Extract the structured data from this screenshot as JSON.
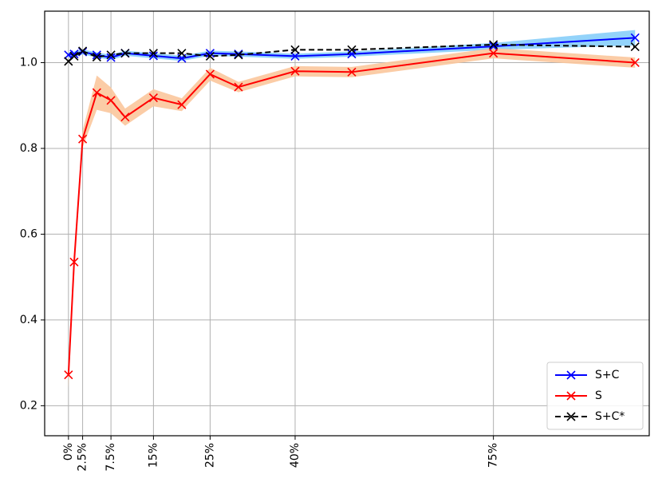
{
  "chart_data": {
    "type": "line",
    "title": "",
    "xlabel": "",
    "ylabel": "",
    "xlim": [
      -4.2,
      102.5
    ],
    "ylim": [
      0.13,
      1.12
    ],
    "grid": true,
    "legend_position": "lower-right",
    "x_ticks": [
      {
        "value": 0,
        "label": "0%"
      },
      {
        "value": 2.5,
        "label": "2.5%"
      },
      {
        "value": 7.5,
        "label": "7.5%"
      },
      {
        "value": 15,
        "label": "15%"
      },
      {
        "value": 25,
        "label": "25%"
      },
      {
        "value": 40,
        "label": "40%"
      },
      {
        "value": 75,
        "label": "75%"
      }
    ],
    "y_ticks": [
      {
        "value": 0.2,
        "label": "0.2"
      },
      {
        "value": 0.4,
        "label": "0.4"
      },
      {
        "value": 0.6,
        "label": "0.6"
      },
      {
        "value": 0.8,
        "label": "0.8"
      },
      {
        "value": 1.0,
        "label": "1.0"
      }
    ],
    "series": [
      {
        "name": "S+C",
        "color": "#0000ff",
        "band_color": "#87cefa",
        "dash": "solid",
        "x": [
          0,
          1,
          2.5,
          5,
          7.5,
          10,
          15,
          20,
          25,
          30,
          40,
          50,
          75,
          100
        ],
        "y": [
          1.018,
          1.02,
          1.025,
          1.018,
          1.012,
          1.022,
          1.016,
          1.01,
          1.022,
          1.02,
          1.015,
          1.02,
          1.038,
          1.058
        ],
        "band": [
          0.006,
          0.006,
          0.006,
          0.006,
          0.006,
          0.006,
          0.006,
          0.006,
          0.006,
          0.006,
          0.006,
          0.006,
          0.008,
          0.018
        ]
      },
      {
        "name": "S",
        "color": "#ff0000",
        "band_color": "#fbc79c",
        "dash": "solid",
        "x": [
          0,
          1,
          2.5,
          5,
          7.5,
          10,
          15,
          20,
          25,
          30,
          40,
          50,
          75,
          100
        ],
        "y": [
          0.272,
          0.535,
          0.822,
          0.93,
          0.912,
          0.873,
          0.918,
          0.902,
          0.973,
          0.943,
          0.98,
          0.978,
          1.022,
          1.0
        ],
        "band": [
          0.03,
          0.02,
          0.02,
          0.04,
          0.03,
          0.02,
          0.02,
          0.015,
          0.015,
          0.012,
          0.012,
          0.012,
          0.012,
          0.012
        ]
      },
      {
        "name": "S+C*",
        "color": "#000000",
        "dash": "dashed",
        "x": [
          0,
          1,
          2.5,
          5,
          7.5,
          10,
          15,
          20,
          25,
          30,
          40,
          50,
          75,
          100
        ],
        "y": [
          1.003,
          1.015,
          1.027,
          1.013,
          1.018,
          1.022,
          1.022,
          1.022,
          1.015,
          1.018,
          1.03,
          1.03,
          1.042,
          1.037
        ]
      }
    ]
  }
}
